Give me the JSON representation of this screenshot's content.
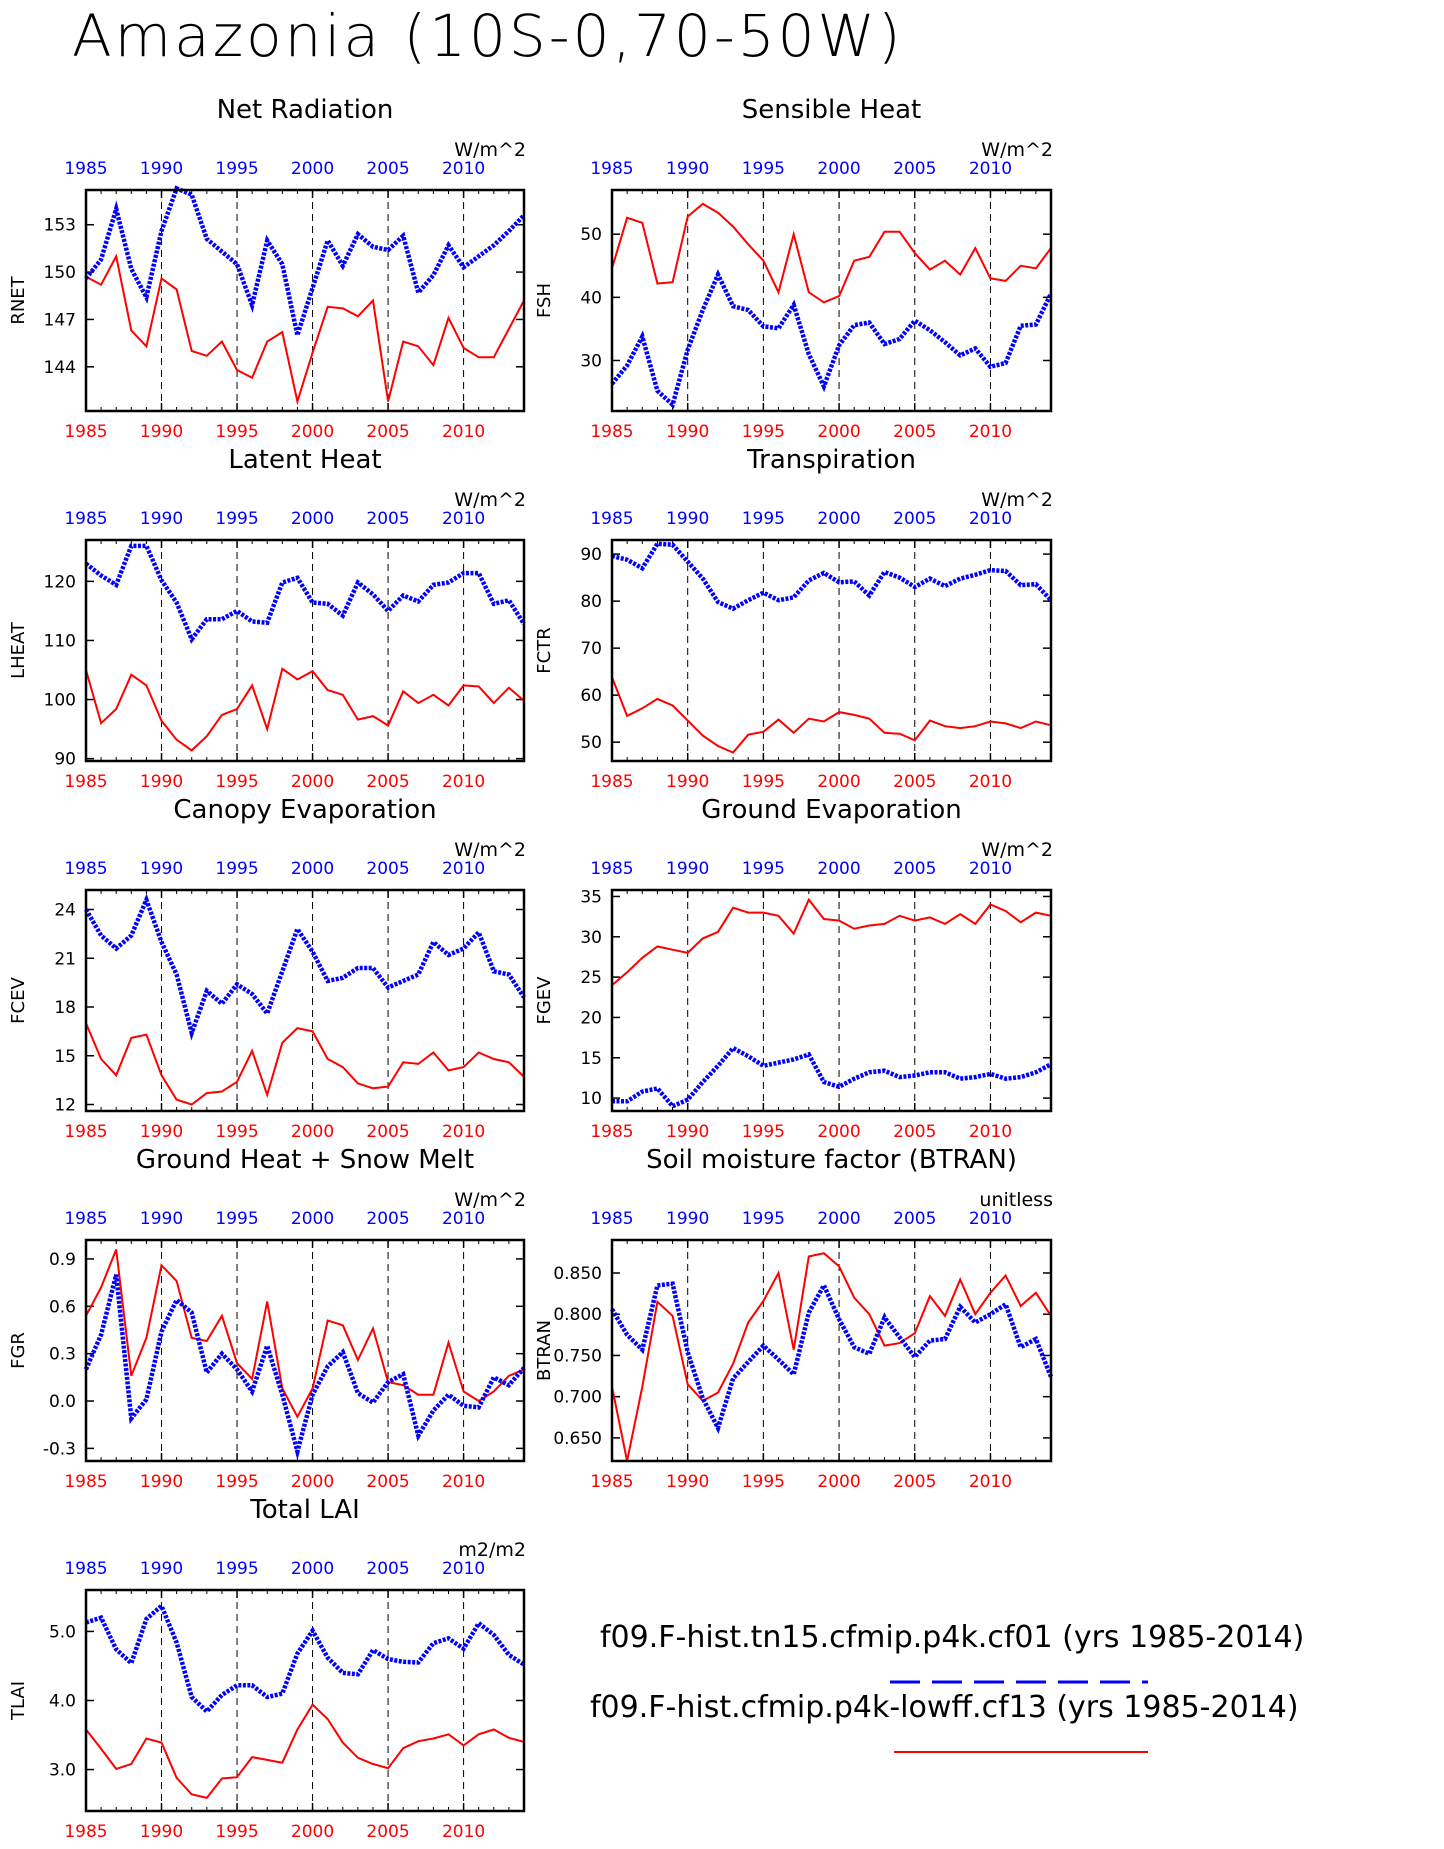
{
  "title": "Amazonia (10S-0,70-50W)",
  "years": [
    1985,
    1986,
    1987,
    1988,
    1989,
    1990,
    1991,
    1992,
    1993,
    1994,
    1995,
    1996,
    1997,
    1998,
    1999,
    2000,
    2001,
    2002,
    2003,
    2004,
    2005,
    2006,
    2007,
    2008,
    2009,
    2010,
    2011,
    2012,
    2013,
    2014
  ],
  "x_ticks": [
    1985,
    1990,
    1995,
    2000,
    2005,
    2010
  ],
  "colors": {
    "series_a": "#0000ff",
    "series_b": "#ff0000",
    "tick_top": "#0000ff",
    "tick_bottom": "#ff0000"
  },
  "legend": {
    "series_a": "f09.F-hist.tn15.cfmip.p4k.cf01 (yrs 1985-2014)",
    "series_b": "f09.F-hist.cfmip.p4k-lowff.cf13 (yrs 1985-2014)"
  },
  "chart_data": [
    {
      "type": "line",
      "title": "Net Radiation",
      "ylabel": "RNET",
      "units": "W/m^2",
      "ylim": [
        141.2,
        155.2
      ],
      "yticks": [
        144,
        147,
        150,
        153
      ],
      "ytick_labels": [
        "144",
        "147",
        "150",
        "153"
      ],
      "series": [
        {
          "values": [
            149.6,
            150.8,
            154.0,
            150.2,
            148.4,
            152.6,
            155.3,
            154.9,
            152.1,
            151.3,
            150.5,
            147.9,
            152.0,
            150.5,
            146.0,
            149.0,
            152.0,
            150.4,
            152.4,
            151.6,
            151.4,
            152.3,
            148.7,
            149.8,
            151.7,
            150.3,
            151.0,
            151.7,
            152.6,
            153.6
          ]
        },
        {
          "values": [
            149.7,
            149.2,
            151.0,
            146.3,
            145.3,
            149.6,
            148.9,
            145.0,
            144.7,
            145.6,
            143.8,
            143.3,
            145.6,
            146.2,
            141.8,
            144.9,
            147.8,
            147.7,
            147.2,
            148.2,
            141.8,
            145.6,
            145.3,
            144.1,
            147.1,
            145.2,
            144.6,
            144.6,
            146.4,
            148.2
          ]
        }
      ]
    },
    {
      "type": "line",
      "title": "Sensible Heat",
      "ylabel": "FSH",
      "units": "W/m^2",
      "ylim": [
        22,
        57
      ],
      "yticks": [
        30,
        40,
        50
      ],
      "ytick_labels": [
        "30",
        "40",
        "50"
      ],
      "series": [
        {
          "values": [
            26.3,
            29.2,
            33.8,
            25.2,
            23.0,
            31.7,
            38.0,
            43.6,
            38.6,
            38.0,
            35.4,
            35.1,
            38.8,
            31.0,
            25.9,
            32.4,
            35.6,
            36.0,
            32.6,
            33.4,
            36.3,
            34.8,
            32.9,
            30.8,
            31.9,
            29.0,
            29.6,
            35.5,
            35.7,
            40.6
          ]
        },
        {
          "values": [
            44.6,
            52.6,
            51.8,
            42.2,
            42.4,
            52.8,
            54.8,
            53.4,
            51.2,
            48.4,
            45.8,
            40.8,
            50.0,
            40.8,
            39.2,
            40.2,
            45.8,
            46.4,
            50.4,
            50.4,
            47.0,
            44.4,
            45.8,
            43.6,
            47.8,
            43.0,
            42.6,
            45.0,
            44.6,
            47.8
          ]
        }
      ]
    },
    {
      "type": "line",
      "title": "Latent Heat",
      "ylabel": "LHEAT",
      "units": "W/m^2",
      "ylim": [
        89.6,
        127
      ],
      "yticks": [
        90,
        100,
        110,
        120
      ],
      "ytick_labels": [
        "90",
        "100",
        "110",
        "120"
      ],
      "series": [
        {
          "values": [
            123.0,
            121.0,
            119.4,
            126.0,
            126.0,
            120.2,
            116.4,
            110.2,
            113.6,
            113.6,
            115.0,
            113.2,
            113.0,
            119.8,
            120.6,
            116.4,
            116.2,
            114.2,
            119.8,
            117.8,
            115.0,
            117.6,
            116.6,
            119.4,
            119.8,
            121.4,
            121.4,
            116.2,
            116.8,
            112.8
          ]
        },
        {
          "values": [
            105.0,
            96.0,
            98.4,
            104.2,
            102.4,
            96.4,
            93.2,
            91.4,
            93.8,
            97.4,
            98.4,
            102.4,
            95.0,
            105.2,
            103.4,
            104.8,
            101.6,
            100.8,
            96.6,
            97.2,
            95.6,
            101.4,
            99.4,
            100.8,
            99.0,
            102.4,
            102.2,
            99.4,
            102.0,
            99.8
          ]
        }
      ]
    },
    {
      "type": "line",
      "title": "Transpiration",
      "ylabel": "FCTR",
      "units": "W/m^2",
      "ylim": [
        46,
        93
      ],
      "yticks": [
        50,
        60,
        70,
        80,
        90
      ],
      "ytick_labels": [
        "50",
        "60",
        "70",
        "80",
        "90"
      ],
      "series": [
        {
          "values": [
            89.6,
            88.8,
            87.0,
            92.2,
            92.0,
            88.4,
            84.8,
            79.8,
            78.4,
            80.2,
            81.8,
            80.2,
            80.8,
            84.4,
            86.0,
            84.0,
            84.2,
            81.2,
            86.2,
            85.0,
            83.0,
            84.8,
            83.2,
            84.8,
            85.6,
            86.6,
            86.4,
            83.4,
            83.6,
            80.2
          ]
        },
        {
          "values": [
            63.8,
            55.6,
            57.2,
            59.2,
            57.8,
            54.6,
            51.4,
            49.2,
            47.8,
            51.6,
            52.2,
            54.8,
            52.0,
            55.0,
            54.4,
            56.4,
            55.8,
            55.0,
            52.0,
            51.8,
            50.4,
            54.6,
            53.4,
            53.0,
            53.4,
            54.4,
            54.0,
            53.0,
            54.4,
            53.6
          ]
        }
      ]
    },
    {
      "type": "line",
      "title": "Canopy Evaporation",
      "ylabel": "FCEV",
      "units": "W/m^2",
      "ylim": [
        11.6,
        25.2
      ],
      "yticks": [
        12,
        15,
        18,
        21,
        24
      ],
      "ytick_labels": [
        "12",
        "15",
        "18",
        "21",
        "24"
      ],
      "series": [
        {
          "values": [
            24.0,
            22.4,
            21.6,
            22.4,
            24.6,
            22.0,
            20.0,
            16.4,
            19.0,
            18.2,
            19.4,
            18.8,
            17.6,
            20.2,
            22.8,
            21.4,
            19.6,
            19.8,
            20.4,
            20.4,
            19.2,
            19.6,
            20.0,
            22.0,
            21.2,
            21.6,
            22.6,
            20.2,
            20.0,
            18.6
          ]
        },
        {
          "values": [
            17.0,
            14.8,
            13.8,
            16.1,
            16.3,
            13.8,
            12.3,
            12.0,
            12.7,
            12.8,
            13.4,
            15.3,
            12.6,
            15.8,
            16.7,
            16.5,
            14.8,
            14.3,
            13.3,
            13.0,
            13.1,
            14.6,
            14.5,
            15.2,
            14.1,
            14.3,
            15.2,
            14.8,
            14.6,
            13.7
          ]
        }
      ]
    },
    {
      "type": "line",
      "title": "Ground Evaporation",
      "ylabel": "FGEV",
      "units": "W/m^2",
      "ylim": [
        8.4,
        35.8
      ],
      "yticks": [
        10,
        15,
        20,
        25,
        30,
        35
      ],
      "ytick_labels": [
        "10",
        "15",
        "20",
        "25",
        "30",
        "35"
      ],
      "series": [
        {
          "values": [
            9.6,
            9.6,
            10.8,
            11.2,
            9.0,
            9.8,
            12.0,
            14.0,
            16.2,
            15.2,
            14.0,
            14.4,
            14.8,
            15.4,
            12.0,
            11.4,
            12.4,
            13.2,
            13.4,
            12.6,
            12.8,
            13.2,
            13.2,
            12.4,
            12.6,
            13.0,
            12.4,
            12.6,
            13.2,
            14.2
          ]
        },
        {
          "values": [
            24.0,
            25.6,
            27.4,
            28.8,
            28.4,
            28.0,
            29.8,
            30.6,
            33.6,
            33.0,
            33.0,
            32.6,
            30.4,
            34.6,
            32.2,
            32.0,
            31.0,
            31.4,
            31.6,
            32.6,
            32.0,
            32.4,
            31.6,
            32.8,
            31.6,
            34.0,
            33.2,
            31.8,
            33.0,
            32.6
          ]
        }
      ]
    },
    {
      "type": "line",
      "title": "Ground Heat + Snow Melt",
      "ylabel": "FGR",
      "units": "W/m^2",
      "ylim": [
        -0.38,
        1.02
      ],
      "yticks": [
        -0.3,
        0.0,
        0.3,
        0.6,
        0.9
      ],
      "ytick_labels": [
        "-0.3",
        "0.0",
        "0.3",
        "0.6",
        "0.9"
      ],
      "series": [
        {
          "values": [
            0.2,
            0.42,
            0.8,
            -0.11,
            0.01,
            0.44,
            0.64,
            0.56,
            0.18,
            0.3,
            0.2,
            0.06,
            0.35,
            0.04,
            -0.32,
            0.04,
            0.22,
            0.31,
            0.05,
            -0.01,
            0.12,
            0.17,
            -0.22,
            -0.06,
            0.04,
            -0.03,
            -0.04,
            0.15,
            0.1,
            0.21
          ]
        },
        {
          "values": [
            0.54,
            0.72,
            0.96,
            0.16,
            0.4,
            0.86,
            0.76,
            0.4,
            0.38,
            0.54,
            0.24,
            0.14,
            0.63,
            0.08,
            -0.1,
            0.08,
            0.51,
            0.48,
            0.26,
            0.46,
            0.12,
            0.1,
            0.04,
            0.04,
            0.37,
            0.06,
            0.0,
            0.06,
            0.16,
            0.2
          ]
        }
      ]
    },
    {
      "type": "line",
      "title": "Soil moisture factor (BTRAN)",
      "ylabel": "BTRAN",
      "units": "unitless",
      "ylim": [
        0.622,
        0.89
      ],
      "yticks": [
        0.65,
        0.7,
        0.75,
        0.8,
        0.85
      ],
      "ytick_labels": [
        "0.650",
        "0.700",
        "0.750",
        "0.800",
        "0.850"
      ],
      "series": [
        {
          "values": [
            0.806,
            0.775,
            0.757,
            0.835,
            0.837,
            0.754,
            0.698,
            0.662,
            0.722,
            0.742,
            0.762,
            0.745,
            0.727,
            0.802,
            0.835,
            0.794,
            0.76,
            0.752,
            0.796,
            0.772,
            0.748,
            0.768,
            0.77,
            0.809,
            0.79,
            0.8,
            0.812,
            0.76,
            0.77,
            0.724
          ]
        },
        {
          "values": [
            0.712,
            0.622,
            0.712,
            0.815,
            0.798,
            0.715,
            0.695,
            0.705,
            0.74,
            0.79,
            0.816,
            0.85,
            0.757,
            0.87,
            0.874,
            0.858,
            0.82,
            0.8,
            0.762,
            0.765,
            0.777,
            0.822,
            0.798,
            0.842,
            0.8,
            0.826,
            0.847,
            0.81,
            0.826,
            0.798
          ]
        }
      ]
    },
    {
      "type": "line",
      "title": "Total LAI",
      "ylabel": "TLAI",
      "units": "m2/m2",
      "ylim": [
        2.4,
        5.6
      ],
      "yticks": [
        3.0,
        4.0,
        5.0
      ],
      "ytick_labels": [
        "3.0",
        "4.0",
        "5.0"
      ],
      "series": [
        {
          "values": [
            5.13,
            5.2,
            4.74,
            4.54,
            5.18,
            5.37,
            4.84,
            4.05,
            3.84,
            4.08,
            4.22,
            4.22,
            4.05,
            4.1,
            4.68,
            5.01,
            4.62,
            4.4,
            4.38,
            4.73,
            4.6,
            4.56,
            4.55,
            4.83,
            4.9,
            4.75,
            5.12,
            4.95,
            4.66,
            4.52
          ]
        },
        {
          "values": [
            3.58,
            3.3,
            3.01,
            3.08,
            3.45,
            3.39,
            2.88,
            2.64,
            2.59,
            2.87,
            2.89,
            3.18,
            3.14,
            3.1,
            3.58,
            3.94,
            3.73,
            3.39,
            3.17,
            3.08,
            3.02,
            3.31,
            3.41,
            3.45,
            3.51,
            3.35,
            3.51,
            3.58,
            3.46,
            3.4
          ]
        }
      ]
    }
  ]
}
